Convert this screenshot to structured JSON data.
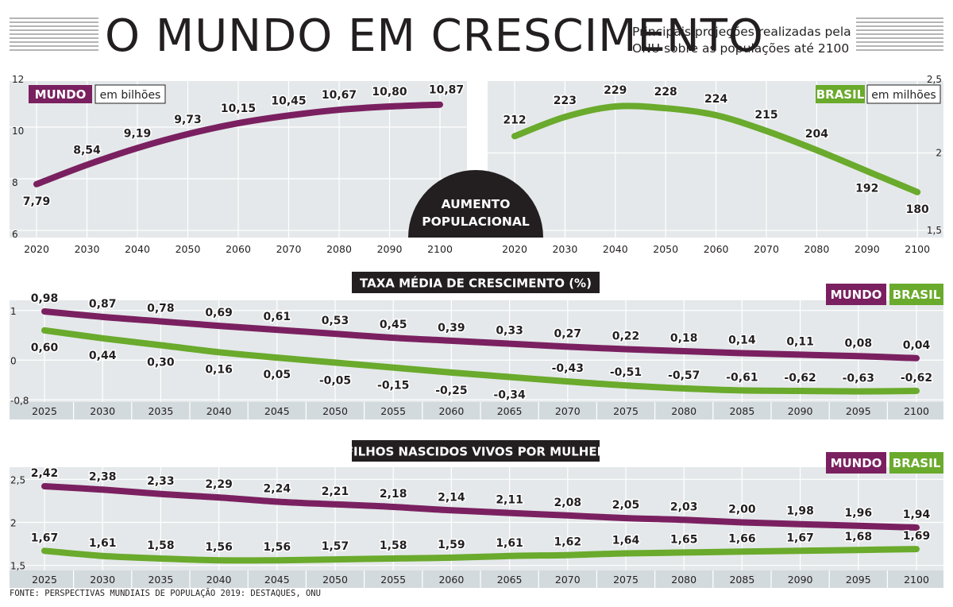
{
  "header": {
    "title": "O MUNDO EM CRESCIMENTO",
    "subtitle_line1": "Principais projeções realizadas pela",
    "subtitle_line2": "ONU sobre as populações até 2100"
  },
  "badge": {
    "line1": "AUMENTO",
    "line2": "POPULACIONAL"
  },
  "footer": {
    "source": "FONTE: PERSPECTIVAS MUNDIAIS DE POPULAÇÃO 2019: DESTAQUES, ONU"
  },
  "colors": {
    "mundo": "#7a2060",
    "brasil": "#6aaa2c",
    "grid_bg": "#e4e8ea",
    "axis_band": "#d3dadd",
    "text": "#231f20"
  },
  "chart_data": [
    {
      "type": "line",
      "name": "mundo-populacao",
      "tag": "MUNDO",
      "unit": "em bilhões",
      "x": [
        2020,
        2030,
        2040,
        2050,
        2060,
        2070,
        2080,
        2090,
        2100
      ],
      "values": [
        7.79,
        8.54,
        9.19,
        9.73,
        10.15,
        10.45,
        10.67,
        10.8,
        10.87
      ],
      "value_labels": [
        "7,79",
        "8,54",
        "9,19",
        "9,73",
        "10,15",
        "10,45",
        "10,67",
        "10,80",
        "10,87"
      ],
      "x_tick_labels": [
        "2020",
        "2030",
        "2040",
        "2050",
        "2060",
        "2070",
        "2080",
        "2090",
        "2100"
      ],
      "y_ticks": [
        6,
        8,
        10,
        12
      ],
      "y_tick_labels": [
        "6",
        "8",
        "10",
        "12"
      ],
      "ylim": [
        6,
        12
      ]
    },
    {
      "type": "line",
      "name": "brasil-populacao",
      "tag": "BRASIL",
      "unit": "em milhões",
      "x": [
        2020,
        2030,
        2040,
        2050,
        2060,
        2070,
        2080,
        2090,
        2100
      ],
      "values": [
        212,
        223,
        229,
        228,
        224,
        215,
        204,
        192,
        180
      ],
      "value_labels": [
        "212",
        "223",
        "229",
        "228",
        "224",
        "215",
        "204",
        "192",
        "180"
      ],
      "x_tick_labels": [
        "2020",
        "2030",
        "2040",
        "2050",
        "2060",
        "2070",
        "2080",
        "2090",
        "2100"
      ],
      "y_ticks": [
        1.5,
        2,
        2.5
      ],
      "y_tick_labels": [
        "1,5",
        "2",
        "2,5"
      ],
      "ylim": [
        1.5,
        2.5
      ]
    },
    {
      "type": "line",
      "name": "taxa-crescimento",
      "title": "TAXA MÉDIA DE CRESCIMENTO (%)",
      "legend": [
        "MUNDO",
        "BRASIL"
      ],
      "x": [
        2025,
        2030,
        2035,
        2040,
        2045,
        2050,
        2055,
        2060,
        2065,
        2070,
        2075,
        2080,
        2085,
        2090,
        2095,
        2100
      ],
      "x_tick_labels": [
        "2025",
        "2030",
        "2035",
        "2040",
        "2045",
        "2050",
        "2055",
        "2060",
        "2065",
        "2070",
        "2075",
        "2080",
        "2085",
        "2090",
        "2095",
        "2100"
      ],
      "y_ticks": [
        -0.8,
        0,
        1
      ],
      "y_tick_labels": [
        "-0,8",
        "0",
        "1"
      ],
      "ylim": [
        -0.8,
        1
      ],
      "series": [
        {
          "name": "MUNDO",
          "values": [
            0.98,
            0.87,
            0.78,
            0.69,
            0.61,
            0.53,
            0.45,
            0.39,
            0.33,
            0.27,
            0.22,
            0.18,
            0.14,
            0.11,
            0.08,
            0.04
          ],
          "value_labels": [
            "0,98",
            "0,87",
            "0,78",
            "0,69",
            "0,61",
            "0,53",
            "0,45",
            "0,39",
            "0,33",
            "0,27",
            "0,22",
            "0,18",
            "0,14",
            "0,11",
            "0,08",
            "0,04"
          ]
        },
        {
          "name": "BRASIL",
          "values": [
            0.6,
            0.44,
            0.3,
            0.16,
            0.05,
            -0.05,
            -0.15,
            -0.25,
            -0.34,
            -0.43,
            -0.51,
            -0.57,
            -0.61,
            -0.62,
            -0.63,
            -0.62
          ],
          "value_labels": [
            "0,60",
            "0,44",
            "0,30",
            "0,16",
            "0,05",
            "-0,05",
            "-0,15",
            "-0,25",
            "-0,34",
            "-0,43",
            "-0,51",
            "-0,57",
            "-0,61",
            "-0,62",
            "-0,63",
            "-0,62"
          ]
        }
      ]
    },
    {
      "type": "line",
      "name": "filhos-por-mulher",
      "title": "FILHOS NASCIDOS VIVOS POR MULHER",
      "legend": [
        "MUNDO",
        "BRASIL"
      ],
      "x": [
        2025,
        2030,
        2035,
        2040,
        2045,
        2050,
        2055,
        2060,
        2065,
        2070,
        2075,
        2080,
        2085,
        2090,
        2095,
        2100
      ],
      "x_tick_labels": [
        "2025",
        "2030",
        "2035",
        "2040",
        "2045",
        "2050",
        "2055",
        "2060",
        "2065",
        "2070",
        "2075",
        "2080",
        "2085",
        "2090",
        "2095",
        "2100"
      ],
      "y_ticks": [
        1.5,
        2,
        2.5
      ],
      "y_tick_labels": [
        "1,5",
        "2",
        "2,5"
      ],
      "ylim": [
        1.5,
        2.5
      ],
      "series": [
        {
          "name": "MUNDO",
          "values": [
            2.42,
            2.38,
            2.33,
            2.29,
            2.24,
            2.21,
            2.18,
            2.14,
            2.11,
            2.08,
            2.05,
            2.03,
            2.0,
            1.98,
            1.96,
            1.94
          ],
          "value_labels": [
            "2,42",
            "2,38",
            "2,33",
            "2,29",
            "2,24",
            "2,21",
            "2,18",
            "2,14",
            "2,11",
            "2,08",
            "2,05",
            "2,03",
            "2,00",
            "1,98",
            "1,96",
            "1,94"
          ]
        },
        {
          "name": "BRASIL",
          "values": [
            1.67,
            1.61,
            1.58,
            1.56,
            1.56,
            1.57,
            1.58,
            1.59,
            1.61,
            1.62,
            1.64,
            1.65,
            1.66,
            1.67,
            1.68,
            1.69
          ],
          "value_labels": [
            "1,67",
            "1,61",
            "1,58",
            "1,56",
            "1,56",
            "1,57",
            "1,58",
            "1,59",
            "1,61",
            "1,62",
            "1,64",
            "1,65",
            "1,66",
            "1,67",
            "1,68",
            "1,69"
          ]
        }
      ]
    }
  ]
}
